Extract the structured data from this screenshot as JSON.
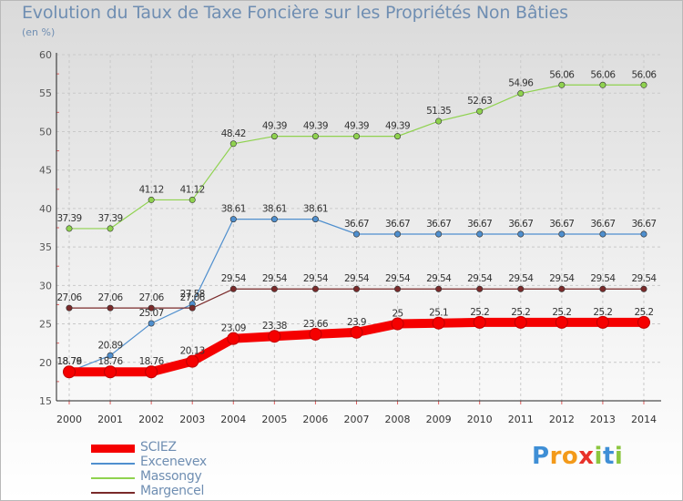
{
  "title": "Evolution du Taux de Taxe Foncière sur les Propriétés Non Bâties",
  "subtitle": "(en %)",
  "logo_letters": [
    "P",
    "r",
    "o",
    "x",
    "i",
    "t",
    "i"
  ],
  "logo_colors": [
    "#3f8fd6",
    "#f39a1a",
    "#f39a1a",
    "#e8322a",
    "#8cc63f",
    "#3f8fd6",
    "#8cc63f"
  ],
  "chart_data": {
    "type": "line",
    "title": "Evolution du Taux de Taxe Foncière sur les Propriétés Non Bâties",
    "ylabel": "(en %)",
    "xlabel": "",
    "x": [
      "2000",
      "2001",
      "2002",
      "2003",
      "2004",
      "2005",
      "2006",
      "2007",
      "2008",
      "2009",
      "2010",
      "2011",
      "2012",
      "2013",
      "2014"
    ],
    "ylim": [
      15,
      60
    ],
    "yticks": [
      "15",
      "20",
      "25",
      "30",
      "35",
      "40",
      "45",
      "50",
      "55",
      "60"
    ],
    "grid": true,
    "legend_position": "bottom-left",
    "series": [
      {
        "name": "SCIEZ",
        "color": "#f50000",
        "emphasized": true,
        "values": [
          18.76,
          18.76,
          18.76,
          20.13,
          23.09,
          23.38,
          23.66,
          23.9,
          25,
          25.1,
          25.2,
          25.2,
          25.2,
          25.2,
          25.2
        ],
        "labels": [
          "18.76",
          "18.76",
          "18.76",
          "20.13",
          "23.09",
          "23.38",
          "23.66",
          "23.9",
          "25",
          "25.1",
          "25.2",
          "25.2",
          "25.2",
          "25.2",
          "25.2"
        ]
      },
      {
        "name": "Excenevex",
        "color": "#4f8fce",
        "values": [
          18.79,
          20.89,
          25.07,
          27.58,
          38.61,
          38.61,
          38.61,
          36.67,
          36.67,
          36.67,
          36.67,
          36.67,
          36.67,
          36.67,
          36.67
        ],
        "labels": [
          "18.79",
          "20.89",
          "25.07",
          "27.58",
          "38.61",
          "38.61",
          "38.61",
          "36.67",
          "36.67",
          "36.67",
          "36.67",
          "36.67",
          "36.67",
          "36.67",
          "36.67"
        ]
      },
      {
        "name": "Massongy",
        "color": "#8fd24f",
        "values": [
          37.39,
          37.39,
          41.12,
          41.12,
          48.42,
          49.39,
          49.39,
          49.39,
          49.39,
          51.35,
          52.63,
          54.96,
          56.06,
          56.06,
          56.06
        ],
        "labels": [
          "37.39",
          "37.39",
          "41.12",
          "41.12",
          "48.42",
          "49.39",
          "49.39",
          "49.39",
          "49.39",
          "51.35",
          "52.63",
          "54.96",
          "56.06",
          "56.06",
          "56.06"
        ]
      },
      {
        "name": "Margencel",
        "color": "#7a2a2a",
        "values": [
          27.06,
          27.06,
          27.06,
          27.06,
          29.54,
          29.54,
          29.54,
          29.54,
          29.54,
          29.54,
          29.54,
          29.54,
          29.54,
          29.54,
          29.54
        ],
        "labels": [
          "27.06",
          "27.06",
          "27.06",
          "27.06",
          "29.54",
          "29.54",
          "29.54",
          "29.54",
          "29.54",
          "29.54",
          "29.54",
          "29.54",
          "29.54",
          "29.54",
          "29.54"
        ]
      }
    ]
  }
}
